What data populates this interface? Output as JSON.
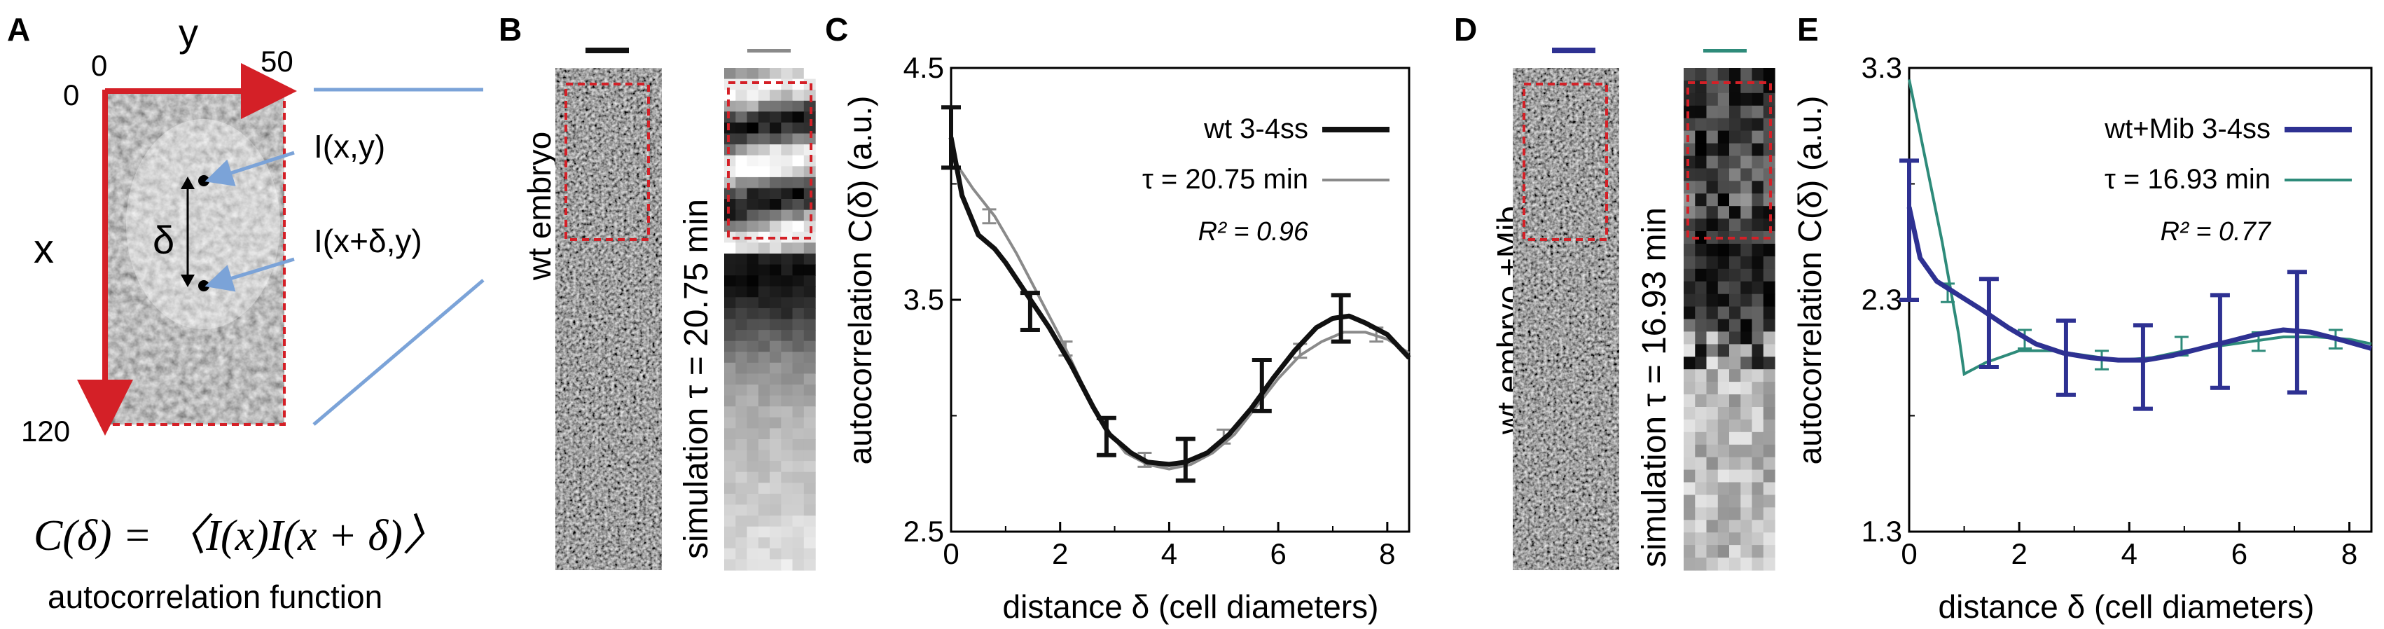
{
  "panelA": {
    "letter": "A",
    "axis_y": "y",
    "axis_x": "x",
    "tick_y0": "0",
    "tick_y50": "50",
    "tick_x0": "0",
    "tick_x120": "120",
    "point1": "I(x,y)",
    "point2": "I(x+δ,y)",
    "delta": "δ",
    "formula": "C(δ) = 〈I(x)I(x + δ)〉",
    "caption": "autocorrelation function"
  },
  "panelB": {
    "letter": "B",
    "embryo_label": "wt embryo",
    "sim_label": "simulation τ = 20.75 min"
  },
  "panelD": {
    "letter": "D",
    "embryo_label": "wt embryo +Mib",
    "sim_label": "simulation τ = 16.93 min"
  },
  "colors": {
    "wt": "#111111",
    "sim_gray": "#8a8a8a",
    "mib": "#2e3192",
    "sim_teal": "#2e8b7a",
    "red": "#d42027",
    "leader": "#7ba3d8"
  },
  "chart_data": [
    {
      "panel": "C",
      "type": "line",
      "xlabel": "distance δ (cell diameters)",
      "ylabel": "autocorrelation C(δ) (a.u.)",
      "xlim": [
        0,
        8.4
      ],
      "ylim": [
        2.5,
        4.5
      ],
      "x_ticks": [
        "0",
        "2",
        "4",
        "6",
        "8"
      ],
      "y_ticks": [
        "2.5",
        "3.5",
        "4.5"
      ],
      "legend": [
        "wt 3-4ss",
        "τ = 20.75 min"
      ],
      "annotation": "R² = 0.96",
      "series": [
        {
          "name": "wt 3-4ss",
          "x": [
            0,
            0.2,
            0.5,
            0.8,
            1.0,
            1.4,
            1.8,
            2.2,
            2.6,
            2.9,
            3.3,
            3.6,
            4.0,
            4.3,
            4.7,
            5.1,
            5.5,
            5.9,
            6.3,
            6.7,
            7.0,
            7.3,
            7.6,
            8.0,
            8.4
          ],
          "y": [
            4.2,
            3.95,
            3.78,
            3.72,
            3.66,
            3.52,
            3.38,
            3.22,
            3.04,
            2.92,
            2.84,
            2.8,
            2.79,
            2.8,
            2.84,
            2.92,
            3.03,
            3.16,
            3.28,
            3.38,
            3.42,
            3.43,
            3.4,
            3.35,
            3.25
          ]
        },
        {
          "name": "τ = 20.75 min",
          "x": [
            0,
            0.4,
            0.8,
            1.2,
            1.6,
            2.0,
            2.4,
            2.8,
            3.2,
            3.6,
            4.0,
            4.4,
            4.8,
            5.2,
            5.6,
            6.0,
            6.4,
            6.8,
            7.2,
            7.6,
            8.0,
            8.4
          ],
          "y": [
            4.12,
            3.98,
            3.86,
            3.7,
            3.52,
            3.34,
            3.14,
            2.96,
            2.84,
            2.79,
            2.77,
            2.79,
            2.84,
            2.92,
            3.04,
            3.16,
            3.26,
            3.32,
            3.36,
            3.36,
            3.33,
            3.27
          ]
        }
      ],
      "errorbars_wt": {
        "x": [
          0,
          1.45,
          2.85,
          4.3,
          5.7,
          7.15
        ],
        "y": [
          4.2,
          3.45,
          2.91,
          2.81,
          3.13,
          3.42
        ],
        "err": [
          0.13,
          0.08,
          0.08,
          0.09,
          0.11,
          0.1
        ]
      },
      "errorbars_sim": {
        "x": [
          0.7,
          2.1,
          3.55,
          5.0,
          6.4,
          7.8
        ],
        "y": [
          3.86,
          3.29,
          2.81,
          2.91,
          3.28,
          3.35
        ],
        "err": [
          0.03,
          0.03,
          0.03,
          0.03,
          0.03,
          0.03
        ]
      }
    },
    {
      "panel": "E",
      "type": "line",
      "xlabel": "distance δ (cell diameters)",
      "ylabel": "autocorrelation C(δ) (a.u.)",
      "xlim": [
        0,
        8.4
      ],
      "ylim": [
        1.3,
        3.3
      ],
      "x_ticks": [
        "0",
        "2",
        "4",
        "6",
        "8"
      ],
      "y_ticks": [
        "1.3",
        "2.3",
        "3.3"
      ],
      "legend": [
        "wt+Mib 3-4ss",
        "τ = 16.93 min"
      ],
      "annotation": "R² = 0.77",
      "series": [
        {
          "name": "wt+Mib 3-4ss",
          "x": [
            0,
            0.2,
            0.5,
            0.9,
            1.3,
            1.8,
            2.3,
            2.8,
            3.3,
            3.8,
            4.3,
            4.8,
            5.3,
            5.8,
            6.3,
            6.8,
            7.3,
            7.8,
            8.4
          ],
          "y": [
            2.7,
            2.48,
            2.38,
            2.32,
            2.26,
            2.18,
            2.11,
            2.07,
            2.05,
            2.04,
            2.04,
            2.06,
            2.09,
            2.12,
            2.15,
            2.17,
            2.16,
            2.13,
            2.09
          ]
        },
        {
          "name": "τ = 16.93 min",
          "x": [
            0,
            0.3,
            0.6,
            0.9,
            1.0,
            1.4,
            2.0,
            2.6,
            3.2,
            3.8,
            4.4,
            5.0,
            5.6,
            6.2,
            6.8,
            7.4,
            8.0,
            8.4
          ],
          "y": [
            3.25,
            2.9,
            2.55,
            2.15,
            1.98,
            2.03,
            2.08,
            2.08,
            2.06,
            2.04,
            2.05,
            2.08,
            2.1,
            2.12,
            2.14,
            2.14,
            2.13,
            2.11
          ]
        }
      ],
      "errorbars_mib": {
        "x": [
          0,
          1.45,
          2.85,
          4.25,
          5.65,
          7.05
        ],
        "y": [
          2.6,
          2.2,
          2.05,
          2.01,
          2.12,
          2.16
        ],
        "err": [
          0.3,
          0.19,
          0.16,
          0.18,
          0.2,
          0.26
        ]
      },
      "errorbars_sim": {
        "x": [
          0.7,
          2.1,
          3.5,
          4.95,
          6.35,
          7.75
        ],
        "y": [
          2.33,
          2.13,
          2.04,
          2.1,
          2.12,
          2.13
        ],
        "err": [
          0.04,
          0.04,
          0.04,
          0.04,
          0.04,
          0.04
        ]
      }
    }
  ]
}
